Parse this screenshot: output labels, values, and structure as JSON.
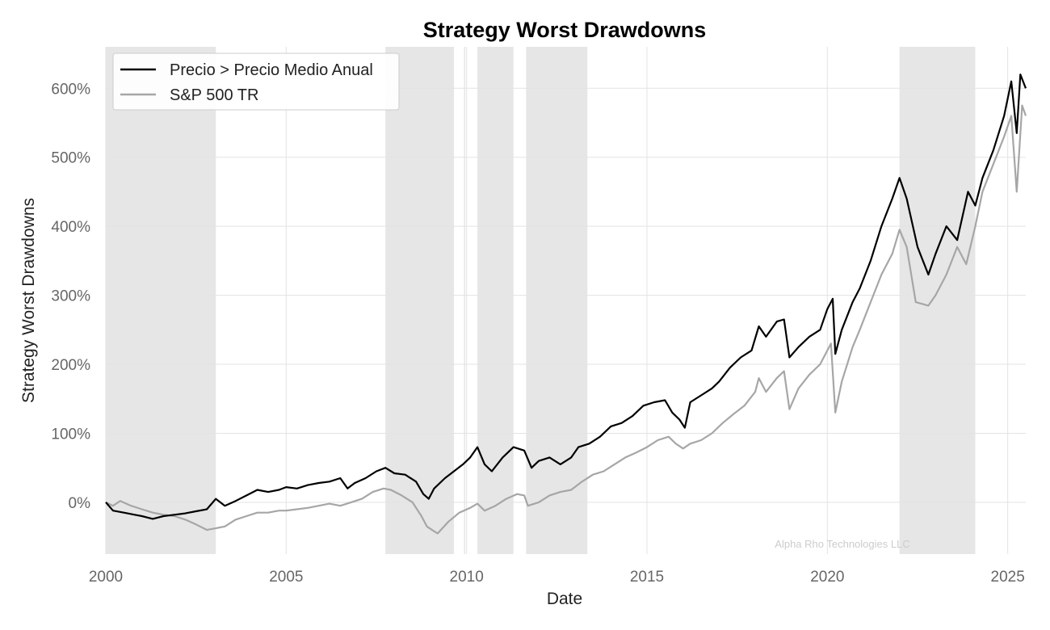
{
  "chart_data": {
    "type": "line",
    "title": "Strategy Worst Drawdowns",
    "xlabel": "Date",
    "ylabel": "Strategy Worst Drawdowns",
    "xlim": [
      2000.0,
      2025.5
    ],
    "ylim": [
      -75,
      660
    ],
    "x_ticks": [
      2000,
      2005,
      2010,
      2015,
      2020,
      2025
    ],
    "x_tick_labels": [
      "2000",
      "2005",
      "2010",
      "2015",
      "2020",
      "2025"
    ],
    "y_ticks": [
      0,
      100,
      200,
      300,
      400,
      500,
      600
    ],
    "y_tick_labels": [
      "0%",
      "100%",
      "200%",
      "300%",
      "400%",
      "500%",
      "600%"
    ],
    "grid": true,
    "legend_position": "top-left",
    "watermark": "Alpha Rho Technologies LLC",
    "drawdown_periods": [
      [
        2000.0,
        2003.05
      ],
      [
        2007.75,
        2009.65
      ],
      [
        2009.93,
        2009.95
      ],
      [
        2010.3,
        2011.3
      ],
      [
        2011.65,
        2013.35
      ],
      [
        2022.0,
        2024.1
      ]
    ],
    "series": [
      {
        "name": "Precio > Precio Medio Anual",
        "color": "#000000",
        "points": [
          [
            2000.0,
            0
          ],
          [
            2000.2,
            -12
          ],
          [
            2000.5,
            -15
          ],
          [
            2000.8,
            -18
          ],
          [
            2001.0,
            -20
          ],
          [
            2001.3,
            -24
          ],
          [
            2001.6,
            -20
          ],
          [
            2001.9,
            -18
          ],
          [
            2002.2,
            -16
          ],
          [
            2002.5,
            -13
          ],
          [
            2002.8,
            -10
          ],
          [
            2003.05,
            5
          ],
          [
            2003.3,
            -5
          ],
          [
            2003.6,
            2
          ],
          [
            2003.9,
            10
          ],
          [
            2004.2,
            18
          ],
          [
            2004.5,
            15
          ],
          [
            2004.8,
            18
          ],
          [
            2005.0,
            22
          ],
          [
            2005.3,
            20
          ],
          [
            2005.6,
            25
          ],
          [
            2005.9,
            28
          ],
          [
            2006.2,
            30
          ],
          [
            2006.5,
            35
          ],
          [
            2006.7,
            20
          ],
          [
            2006.9,
            28
          ],
          [
            2007.2,
            35
          ],
          [
            2007.5,
            45
          ],
          [
            2007.75,
            50
          ],
          [
            2008.0,
            42
          ],
          [
            2008.3,
            40
          ],
          [
            2008.6,
            30
          ],
          [
            2008.8,
            12
          ],
          [
            2008.95,
            5
          ],
          [
            2009.1,
            20
          ],
          [
            2009.4,
            35
          ],
          [
            2009.65,
            45
          ],
          [
            2009.9,
            55
          ],
          [
            2010.1,
            65
          ],
          [
            2010.3,
            80
          ],
          [
            2010.5,
            55
          ],
          [
            2010.7,
            45
          ],
          [
            2011.0,
            65
          ],
          [
            2011.3,
            80
          ],
          [
            2011.6,
            75
          ],
          [
            2011.8,
            50
          ],
          [
            2012.0,
            60
          ],
          [
            2012.3,
            65
          ],
          [
            2012.6,
            55
          ],
          [
            2012.9,
            65
          ],
          [
            2013.1,
            80
          ],
          [
            2013.4,
            85
          ],
          [
            2013.7,
            95
          ],
          [
            2014.0,
            110
          ],
          [
            2014.3,
            115
          ],
          [
            2014.6,
            125
          ],
          [
            2014.9,
            140
          ],
          [
            2015.2,
            145
          ],
          [
            2015.5,
            148
          ],
          [
            2015.7,
            130
          ],
          [
            2015.9,
            120
          ],
          [
            2016.05,
            108
          ],
          [
            2016.2,
            145
          ],
          [
            2016.5,
            155
          ],
          [
            2016.8,
            165
          ],
          [
            2017.0,
            175
          ],
          [
            2017.3,
            195
          ],
          [
            2017.6,
            210
          ],
          [
            2017.9,
            220
          ],
          [
            2018.1,
            255
          ],
          [
            2018.3,
            240
          ],
          [
            2018.6,
            262
          ],
          [
            2018.8,
            265
          ],
          [
            2018.95,
            210
          ],
          [
            2019.2,
            225
          ],
          [
            2019.5,
            240
          ],
          [
            2019.8,
            250
          ],
          [
            2020.0,
            280
          ],
          [
            2020.15,
            295
          ],
          [
            2020.22,
            215
          ],
          [
            2020.4,
            250
          ],
          [
            2020.7,
            290
          ],
          [
            2020.9,
            310
          ],
          [
            2021.2,
            350
          ],
          [
            2021.5,
            400
          ],
          [
            2021.8,
            440
          ],
          [
            2022.0,
            470
          ],
          [
            2022.2,
            440
          ],
          [
            2022.5,
            370
          ],
          [
            2022.8,
            330
          ],
          [
            2023.0,
            360
          ],
          [
            2023.3,
            400
          ],
          [
            2023.6,
            380
          ],
          [
            2023.9,
            450
          ],
          [
            2024.1,
            430
          ],
          [
            2024.3,
            470
          ],
          [
            2024.6,
            510
          ],
          [
            2024.9,
            560
          ],
          [
            2025.1,
            610
          ],
          [
            2025.25,
            535
          ],
          [
            2025.35,
            620
          ],
          [
            2025.5,
            600
          ]
        ]
      },
      {
        "name": "S&P 500 TR",
        "color": "#a6a6a6",
        "points": [
          [
            2000.0,
            0
          ],
          [
            2000.2,
            -5
          ],
          [
            2000.4,
            2
          ],
          [
            2000.7,
            -5
          ],
          [
            2001.0,
            -10
          ],
          [
            2001.3,
            -15
          ],
          [
            2001.6,
            -18
          ],
          [
            2001.9,
            -20
          ],
          [
            2002.2,
            -25
          ],
          [
            2002.5,
            -32
          ],
          [
            2002.8,
            -40
          ],
          [
            2003.0,
            -38
          ],
          [
            2003.3,
            -35
          ],
          [
            2003.6,
            -25
          ],
          [
            2003.9,
            -20
          ],
          [
            2004.2,
            -15
          ],
          [
            2004.5,
            -15
          ],
          [
            2004.8,
            -12
          ],
          [
            2005.0,
            -12
          ],
          [
            2005.3,
            -10
          ],
          [
            2005.6,
            -8
          ],
          [
            2005.9,
            -5
          ],
          [
            2006.2,
            -2
          ],
          [
            2006.5,
            -5
          ],
          [
            2006.8,
            0
          ],
          [
            2007.1,
            5
          ],
          [
            2007.4,
            15
          ],
          [
            2007.7,
            20
          ],
          [
            2007.9,
            18
          ],
          [
            2008.2,
            10
          ],
          [
            2008.5,
            0
          ],
          [
            2008.75,
            -20
          ],
          [
            2008.9,
            -35
          ],
          [
            2009.1,
            -42
          ],
          [
            2009.2,
            -45
          ],
          [
            2009.5,
            -28
          ],
          [
            2009.8,
            -15
          ],
          [
            2010.1,
            -8
          ],
          [
            2010.3,
            -2
          ],
          [
            2010.5,
            -12
          ],
          [
            2010.8,
            -5
          ],
          [
            2011.1,
            5
          ],
          [
            2011.4,
            12
          ],
          [
            2011.6,
            10
          ],
          [
            2011.7,
            -5
          ],
          [
            2012.0,
            0
          ],
          [
            2012.3,
            10
          ],
          [
            2012.6,
            15
          ],
          [
            2012.9,
            18
          ],
          [
            2013.2,
            30
          ],
          [
            2013.5,
            40
          ],
          [
            2013.8,
            45
          ],
          [
            2014.1,
            55
          ],
          [
            2014.4,
            65
          ],
          [
            2014.7,
            72
          ],
          [
            2015.0,
            80
          ],
          [
            2015.3,
            90
          ],
          [
            2015.6,
            95
          ],
          [
            2015.8,
            85
          ],
          [
            2016.0,
            78
          ],
          [
            2016.2,
            85
          ],
          [
            2016.5,
            90
          ],
          [
            2016.8,
            100
          ],
          [
            2017.1,
            115
          ],
          [
            2017.4,
            128
          ],
          [
            2017.7,
            140
          ],
          [
            2018.0,
            160
          ],
          [
            2018.1,
            180
          ],
          [
            2018.3,
            160
          ],
          [
            2018.6,
            180
          ],
          [
            2018.8,
            190
          ],
          [
            2018.95,
            135
          ],
          [
            2019.2,
            165
          ],
          [
            2019.5,
            185
          ],
          [
            2019.8,
            200
          ],
          [
            2020.1,
            230
          ],
          [
            2020.22,
            130
          ],
          [
            2020.4,
            175
          ],
          [
            2020.7,
            225
          ],
          [
            2020.9,
            250
          ],
          [
            2021.2,
            290
          ],
          [
            2021.5,
            330
          ],
          [
            2021.8,
            360
          ],
          [
            2022.0,
            395
          ],
          [
            2022.2,
            370
          ],
          [
            2022.45,
            290
          ],
          [
            2022.8,
            285
          ],
          [
            2023.0,
            300
          ],
          [
            2023.3,
            330
          ],
          [
            2023.6,
            370
          ],
          [
            2023.85,
            345
          ],
          [
            2024.1,
            400
          ],
          [
            2024.3,
            450
          ],
          [
            2024.6,
            490
          ],
          [
            2024.9,
            530
          ],
          [
            2025.1,
            560
          ],
          [
            2025.25,
            450
          ],
          [
            2025.4,
            575
          ],
          [
            2025.5,
            560
          ]
        ]
      }
    ]
  }
}
